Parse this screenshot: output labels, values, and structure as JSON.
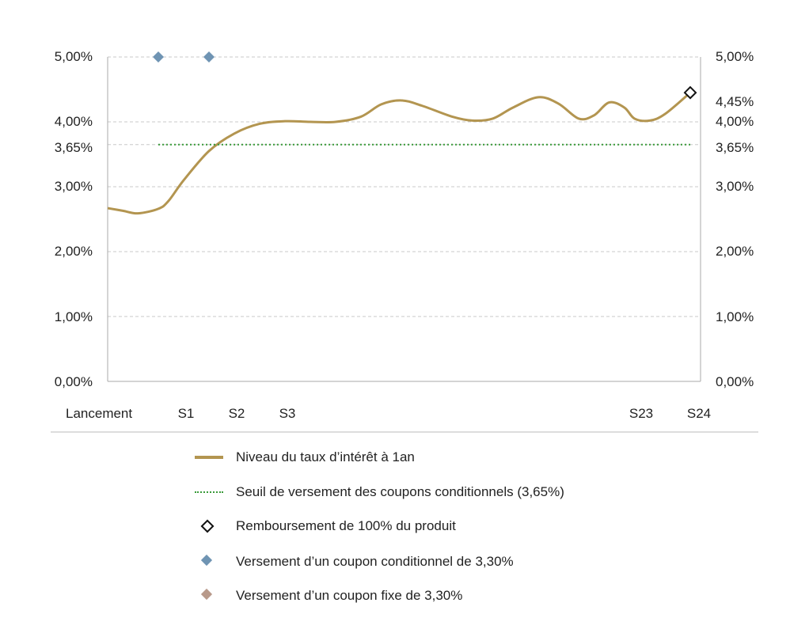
{
  "chart_data": {
    "type": "line",
    "x_labels": [
      "Lancement",
      "S1",
      "S2",
      "S3",
      "S23",
      "S24"
    ],
    "y_left_ticks": [
      "5,00%",
      "4,00%",
      "3,65%",
      "3,00%",
      "2,00%",
      "1,00%",
      "0,00%"
    ],
    "y_right_ticks": [
      "5,00%",
      "4,45%",
      "4,00%",
      "3,65%",
      "3,00%",
      "2,00%",
      "1,00%",
      "0,00%"
    ],
    "ylim": [
      0,
      5
    ],
    "grid": true,
    "series": [
      {
        "name": "Niveau du taux d’intérêt à 1an",
        "color": "#b39550",
        "points": [
          [
            0,
            2.67
          ],
          [
            0.3,
            2.63
          ],
          [
            0.6,
            2.59
          ],
          [
            1.0,
            2.66
          ],
          [
            1.2,
            2.78
          ],
          [
            1.5,
            3.1
          ],
          [
            2.0,
            3.55
          ],
          [
            2.5,
            3.82
          ],
          [
            3.0,
            3.97
          ],
          [
            3.5,
            4.01
          ],
          [
            4.0,
            4.0
          ],
          [
            4.5,
            4.0
          ],
          [
            5.0,
            4.08
          ],
          [
            5.4,
            4.27
          ],
          [
            5.8,
            4.33
          ],
          [
            6.2,
            4.25
          ],
          [
            6.8,
            4.08
          ],
          [
            7.2,
            4.02
          ],
          [
            7.6,
            4.05
          ],
          [
            8.0,
            4.22
          ],
          [
            8.5,
            4.38
          ],
          [
            8.9,
            4.28
          ],
          [
            9.3,
            4.05
          ],
          [
            9.6,
            4.1
          ],
          [
            9.9,
            4.3
          ],
          [
            10.2,
            4.22
          ],
          [
            10.4,
            4.05
          ],
          [
            10.7,
            4.02
          ],
          [
            11.0,
            4.12
          ],
          [
            11.5,
            4.45
          ]
        ]
      },
      {
        "name": "Seuil de versement des coupons conditionnels (3,65%)",
        "color": "#3a9a3a",
        "style": "dotted",
        "points": [
          [
            1,
            3.65
          ],
          [
            11.5,
            3.65
          ]
        ]
      }
    ],
    "markers": [
      {
        "type": "conditional_coupon",
        "x": 1,
        "y": 5.0,
        "color": "#6f94b3"
      },
      {
        "type": "conditional_coupon",
        "x": 2,
        "y": 5.0,
        "color": "#6f94b3"
      },
      {
        "type": "redemption",
        "x": 11.5,
        "y": 4.45
      }
    ],
    "legend": [
      {
        "key": "line",
        "label": "Niveau du taux d’intérêt à 1an",
        "color": "#b39550"
      },
      {
        "key": "threshold",
        "label": "Seuil de versement des coupons conditionnels (3,65%)",
        "color": "#3a9a3a"
      },
      {
        "key": "redemption",
        "label": "Remboursement de 100% du produit",
        "color": "#111111"
      },
      {
        "key": "conditional",
        "label": "Versement d’un coupon conditionnel de 3,30%",
        "color": "#6f94b3"
      },
      {
        "key": "fixed",
        "label": "Versement d’un coupon fixe de 3,30%",
        "color": "#b8998a"
      }
    ]
  }
}
